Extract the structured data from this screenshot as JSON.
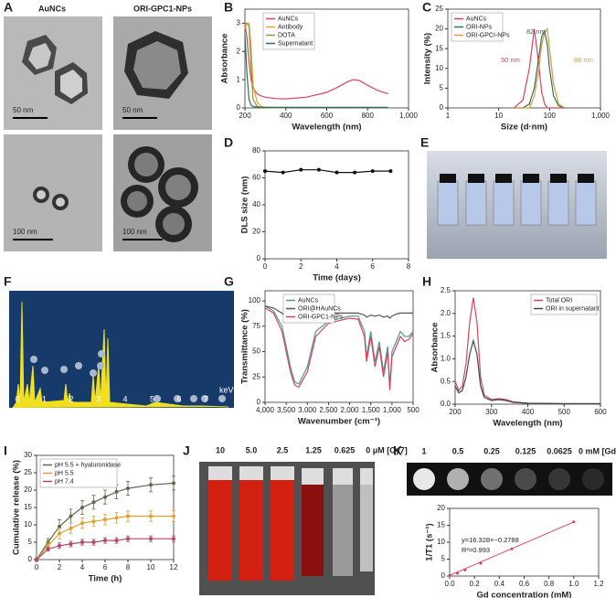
{
  "images": {
    "A": {
      "panel": "A",
      "columns": [
        "AuNCs",
        "ORI-GPC1-NPs"
      ],
      "scale_bars": [
        "50 nm",
        "50 nm",
        "100 nm",
        "100 nm"
      ]
    },
    "E": {
      "panel": "E"
    },
    "F": {
      "panel": "F",
      "xticks": [
        0,
        1,
        2,
        3,
        4,
        5,
        6,
        7
      ],
      "unit": "keV"
    },
    "J": {
      "panel": "J",
      "labels": [
        "10",
        "5.0",
        "2.5",
        "1.25",
        "0.625",
        "0 μM [Cy7]"
      ]
    },
    "K": {
      "panel": "K",
      "labels": [
        "1",
        "0.5",
        "0.25",
        "0.125",
        "0.0625",
        "0 mM [Gd]"
      ]
    }
  },
  "chart_data": [
    {
      "panel": "B",
      "type": "line",
      "ylabel": "Absorbance",
      "xlabel": "Wavelength (nm)",
      "xlim": [
        200,
        1000
      ],
      "xticks": [
        200,
        400,
        600,
        800,
        {
          "value": 1000,
          "label": "1,000"
        }
      ],
      "ylim": [
        0,
        3.5
      ],
      "yticks": [
        0,
        1,
        2,
        3
      ],
      "legend": "upper center",
      "x": [
        200,
        210,
        220,
        230,
        240,
        260,
        280,
        300,
        350,
        400,
        500,
        600,
        650,
        700,
        730,
        760,
        800,
        850,
        900
      ],
      "series": [
        {
          "name": "AuNCs",
          "color": "#d9435a",
          "values": [
            3.0,
            2.5,
            1.6,
            1.0,
            0.7,
            0.5,
            0.42,
            0.38,
            0.33,
            0.32,
            0.38,
            0.55,
            0.72,
            0.92,
            1.0,
            0.97,
            0.8,
            0.62,
            0.5
          ]
        },
        {
          "name": "Antibody",
          "color": "#e8a030",
          "values": [
            2.8,
            3.0,
            3.0,
            2.2,
            0.8,
            0.2,
            0.05,
            0.02,
            0.01,
            0.01,
            null,
            null,
            null,
            null,
            null,
            null,
            null,
            null,
            null
          ]
        },
        {
          "name": "DOTA",
          "color": "#8a9a3a",
          "values": [
            3.0,
            3.0,
            2.9,
            1.5,
            0.3,
            0.05,
            0.02,
            0.01,
            0.01,
            0.01,
            null,
            null,
            null,
            null,
            null,
            null,
            null,
            null,
            null
          ]
        },
        {
          "name": "Supernatant",
          "color": "#2f6f5a",
          "values": [
            2.6,
            1.2,
            0.3,
            0.1,
            0.05,
            0.03,
            0.02,
            0.02,
            0.02,
            0.02,
            0.02,
            0.02,
            0.02,
            0.02,
            0.02,
            0.02,
            0.02,
            0.02,
            0.02
          ]
        }
      ]
    },
    {
      "panel": "C",
      "type": "line",
      "ylabel": "Intensity (%)",
      "xlabel": "Size (d·nm)",
      "xscale": "log",
      "xlim": [
        1,
        1000
      ],
      "xticks": [
        1,
        10,
        100,
        {
          "value": 1000,
          "label": "1,000"
        }
      ],
      "ylim": [
        0,
        25
      ],
      "yticks": [
        0,
        5,
        10,
        15,
        20,
        25
      ],
      "legend": "upper left",
      "annotations": [
        "50 nm",
        "82 nm",
        "88 nm"
      ],
      "x": [
        20,
        30,
        40,
        50,
        60,
        70,
        80,
        90,
        100,
        120,
        150,
        200
      ],
      "series": [
        {
          "name": "AuNCs",
          "color": "#d9435a",
          "values": [
            0,
            2,
            10,
            20,
            12,
            4,
            1,
            0,
            0,
            0,
            0,
            0
          ]
        },
        {
          "name": "ORI-NPs",
          "color": "#2f6f5a",
          "values": [
            0,
            0,
            1,
            5,
            12,
            18,
            19.5,
            16,
            10,
            3,
            0.5,
            0
          ]
        },
        {
          "name": "ORI-GPCI-NPs",
          "color": "#e8963a",
          "values": [
            0,
            0,
            0,
            3,
            9,
            16,
            19,
            20,
            15,
            6,
            1,
            0
          ]
        }
      ]
    },
    {
      "panel": "D",
      "type": "line",
      "markers": true,
      "ylabel": "DLS size (nm)",
      "xlabel": "Time (days)",
      "xlim": [
        0,
        8
      ],
      "xticks": [
        0,
        2,
        4,
        6,
        8
      ],
      "ylim": [
        0,
        80
      ],
      "yticks": [
        0,
        20,
        40,
        60,
        80
      ],
      "x": [
        0,
        1,
        2,
        3,
        4,
        5,
        6,
        7
      ],
      "values": [
        65,
        64,
        66,
        66,
        64,
        64,
        65,
        65
      ],
      "color": "#111111"
    },
    {
      "panel": "G",
      "type": "line",
      "ylabel": "Transmittance (%)",
      "xlabel": "Wavenumber (cm⁻¹)",
      "xlim": [
        4000,
        500
      ],
      "xticks": [
        {
          "value": 4000,
          "label": "4,000"
        },
        {
          "value": 3500,
          "label": "3,500"
        },
        {
          "value": 3000,
          "label": "3,000"
        },
        {
          "value": 2500,
          "label": "2,500"
        },
        {
          "value": 2000,
          "label": "2,000"
        },
        {
          "value": 1500,
          "label": "1,500"
        },
        {
          "value": 1000,
          "label": "1,000"
        },
        500
      ],
      "ylim": [
        0,
        110
      ],
      "yticks": [
        0,
        25,
        50,
        75,
        100
      ],
      "legend": "upper center",
      "x": [
        4000,
        3800,
        3600,
        3400,
        3300,
        3200,
        3000,
        2800,
        2500,
        2000,
        1800,
        1650,
        1600,
        1500,
        1400,
        1300,
        1200,
        1100,
        1050,
        1000,
        900,
        800,
        700,
        600,
        500
      ],
      "series": [
        {
          "name": "AuNCs",
          "color": "#4a9a9a",
          "values": [
            95,
            90,
            75,
            35,
            20,
            18,
            35,
            70,
            80,
            85,
            85,
            70,
            45,
            70,
            40,
            60,
            30,
            55,
            15,
            50,
            60,
            70,
            65,
            65,
            70
          ]
        },
        {
          "name": "ORI@HAuNCs",
          "color": "#555555",
          "values": [
            95,
            93,
            88,
            80,
            80,
            82,
            85,
            88,
            88,
            88,
            88,
            86,
            84,
            86,
            85,
            86,
            84,
            85,
            83,
            85,
            87,
            88,
            88,
            88,
            88
          ]
        },
        {
          "name": "ORI-GPC1-NPs",
          "color": "#d9435a",
          "values": [
            93,
            88,
            70,
            30,
            17,
            15,
            30,
            65,
            78,
            83,
            82,
            65,
            40,
            65,
            35,
            55,
            25,
            50,
            12,
            45,
            55,
            65,
            60,
            62,
            68
          ]
        }
      ]
    },
    {
      "panel": "H",
      "type": "line",
      "ylabel": "Absorbance",
      "xlabel": "Wavelength (nm)",
      "xlim": [
        200,
        600
      ],
      "xticks": [
        200,
        300,
        400,
        500,
        600
      ],
      "ylim": [
        0,
        2.5
      ],
      "yticks": [
        {
          "value": 0,
          "label": "0.0"
        },
        0.5,
        {
          "value": 1,
          "label": "1.0"
        },
        1.5,
        {
          "value": 2,
          "label": "2.0"
        },
        2.5
      ],
      "legend": "upper right",
      "x": [
        200,
        210,
        220,
        230,
        240,
        250,
        260,
        270,
        280,
        300,
        320,
        340,
        360,
        400,
        500,
        600
      ],
      "series": [
        {
          "name": "Total ORI",
          "color": "#d9435a",
          "values": [
            0.5,
            0.3,
            0.4,
            0.9,
            1.8,
            2.35,
            1.8,
            0.6,
            0.2,
            0.1,
            0.12,
            0.1,
            0.05,
            0.02,
            0.01,
            0.01
          ]
        },
        {
          "name": "ORI in supernatant",
          "color": "#3a4a4a",
          "values": [
            0.4,
            0.25,
            0.3,
            0.6,
            1.1,
            1.4,
            1.1,
            0.4,
            0.15,
            0.08,
            0.1,
            0.08,
            0.04,
            0.02,
            0.01,
            0.01
          ]
        }
      ]
    },
    {
      "panel": "I",
      "type": "line",
      "markers": true,
      "ylabel": "Cumulative release (%)",
      "xlabel": "Time (h)",
      "xlim": [
        0,
        12
      ],
      "xticks": [
        0,
        2,
        4,
        6,
        8,
        10,
        12
      ],
      "ylim": [
        0,
        30
      ],
      "yticks": [
        0,
        5,
        10,
        15,
        20,
        25,
        30
      ],
      "legend": "upper left",
      "x": [
        0,
        1,
        2,
        3,
        4,
        5,
        6,
        7,
        8,
        10,
        12
      ],
      "series": [
        {
          "name": "pH 5.5 + hyaluronidase",
          "color": "#5c6b4a",
          "values": [
            0,
            5,
            9.5,
            12.5,
            15,
            16.5,
            18,
            19.5,
            20.5,
            21.5,
            22
          ],
          "errors": [
            0.5,
            1,
            2,
            2,
            2,
            2,
            2,
            2,
            2,
            2,
            2
          ]
        },
        {
          "name": "pH 5.5",
          "color": "#e0a030",
          "values": [
            0,
            4,
            7.5,
            9,
            10.5,
            11,
            11.5,
            12,
            12.5,
            12.5,
            12.5
          ],
          "errors": [
            0.5,
            1,
            1.5,
            1.5,
            1.5,
            1.5,
            1.5,
            1.5,
            1.5,
            1.5,
            1.5
          ]
        },
        {
          "name": "pH 7.4",
          "color": "#b0476a",
          "values": [
            0,
            3,
            4,
            4.5,
            5,
            5,
            5.5,
            5.5,
            6,
            6,
            6
          ],
          "errors": [
            0.3,
            0.5,
            0.8,
            0.8,
            0.8,
            0.8,
            0.8,
            0.8,
            0.8,
            0.8,
            0.8
          ]
        }
      ]
    },
    {
      "type": "scatter",
      "trendline": true,
      "ylabel": "1/T1 (s⁻¹)",
      "xlabel": "Gd concentration (mM)",
      "xlim": [
        0,
        1.2
      ],
      "xticks": [
        {
          "value": 0,
          "label": "0.0"
        },
        0.2,
        0.4,
        0.6,
        0.8,
        {
          "value": 1,
          "label": "1.0"
        },
        1.2
      ],
      "ylim": [
        0,
        20
      ],
      "yticks": [
        0,
        5,
        10,
        15,
        20
      ],
      "annotations": [
        "y=16.328×−0.2788",
        "R²=0.993"
      ],
      "x": [
        0,
        0.0625,
        0.125,
        0.25,
        0.5,
        1.0
      ],
      "values": [
        0.2,
        0.8,
        1.8,
        3.8,
        8.0,
        16.0
      ],
      "color": "#d9435a"
    }
  ]
}
